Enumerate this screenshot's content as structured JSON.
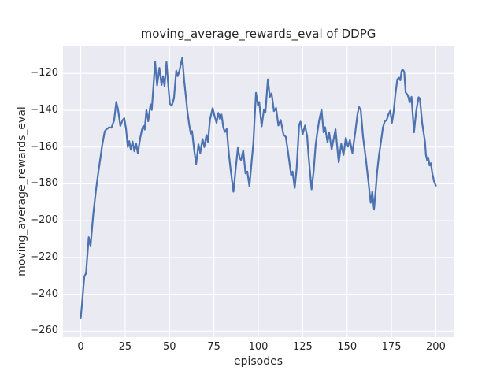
{
  "figure": {
    "title": "moving_average_rewards_eval of DDPG",
    "xlabel": "episodes",
    "ylabel": "moving_average_rewards_eval"
  },
  "colors": {
    "figure_background": "#ffffff",
    "axes_background": "#eaeaf2",
    "grid": "#ffffff",
    "line": "#4c72b0",
    "text": "#262626"
  },
  "chart_data": {
    "type": "line",
    "title": "moving_average_rewards_eval of DDPG",
    "xlabel": "episodes",
    "ylabel": "moving_average_rewards_eval",
    "grid": true,
    "legend": false,
    "xlim": [
      -10,
      210
    ],
    "ylim": [
      -263.3,
      -104.9
    ],
    "x_ticks": [
      0,
      25,
      50,
      75,
      100,
      125,
      150,
      175,
      200
    ],
    "y_ticks": [
      -120,
      -140,
      -160,
      -180,
      -200,
      -220,
      -240,
      -260
    ],
    "minus_sign": "−",
    "series": [
      {
        "name": "moving_average_rewards_eval",
        "color": "#4c72b0",
        "x": [
          0,
          1,
          2,
          3,
          4.5,
          5.5,
          7,
          8.5,
          10,
          11.3,
          12,
          13.5,
          14.5,
          16,
          17.3,
          18.8,
          20,
          21,
          22.3,
          23.5,
          24.5,
          25.5,
          26.5,
          27.3,
          28.2,
          29.2,
          30.2,
          31.2,
          32.2,
          33.5,
          34.5,
          35.2,
          36,
          37,
          38,
          39.3,
          40,
          41.9,
          43,
          44.3,
          45.5,
          46.3,
          47.2,
          48.3,
          49.3,
          50.2,
          51.3,
          52.5,
          53.8,
          54.6,
          55.4,
          57.2,
          58.3,
          59.2,
          60,
          61,
          62,
          62.7,
          63.8,
          65,
          66.3,
          67.3,
          68.6,
          69.6,
          70.8,
          71.6,
          72.8,
          74.3,
          75.4,
          76.5,
          77.5,
          78.4,
          79.3,
          80.3,
          81.2,
          82.2,
          83.5,
          84.7,
          86,
          87.3,
          88.5,
          89.5,
          90.3,
          91.5,
          92.8,
          93.8,
          95,
          96.2,
          97.2,
          98.7,
          99.8,
          100.5,
          101.9,
          103.2,
          104,
          105.4,
          106.5,
          107.5,
          108.8,
          110,
          111.3,
          112.6,
          114.2,
          115.5,
          117,
          118.5,
          119.3,
          120.5,
          121.6,
          123,
          123.8,
          125,
          126.3,
          127.5,
          128.3,
          130,
          131.2,
          132.3,
          133.3,
          134.2,
          135.6,
          136.8,
          137.6,
          139,
          139.9,
          141.3,
          143.5,
          145.3,
          146.7,
          148,
          149.3,
          150.5,
          151.6,
          153,
          154.7,
          156,
          156.8,
          157.7,
          159,
          160.5,
          161.7,
          163.3,
          164.2,
          165.2,
          166.2,
          167,
          168,
          169,
          170.2,
          171.2,
          172.3,
          173.3,
          174.3,
          175.3,
          176.3,
          177.2,
          178.3,
          179.2,
          180,
          180.7,
          181.3,
          182.2,
          183,
          184.2,
          185.3,
          186.3,
          187.7,
          189,
          190.3,
          191,
          192.3,
          193.2,
          193.9,
          194.4,
          195.1,
          195.7,
          196.5,
          197.2,
          198,
          199,
          200
        ],
        "y": [
          -253,
          -242,
          -230.5,
          -228.5,
          -209,
          -214,
          -197,
          -184,
          -173,
          -164.5,
          -159.5,
          -151.5,
          -150.3,
          -149.3,
          -149.5,
          -145.5,
          -135.5,
          -139.5,
          -148.5,
          -145.5,
          -144.3,
          -150,
          -160,
          -156.8,
          -161.5,
          -157,
          -162.3,
          -158.2,
          -163.5,
          -155,
          -150.5,
          -148.5,
          -150.5,
          -139.8,
          -146,
          -136.8,
          -139.8,
          -113.7,
          -126.5,
          -117,
          -126.3,
          -121.5,
          -126.8,
          -113.8,
          -126.5,
          -136.5,
          -137.5,
          -133.5,
          -118.5,
          -121.5,
          -119.2,
          -111.5,
          -124.3,
          -132.3,
          -140,
          -147.3,
          -152.8,
          -151.3,
          -161,
          -169.2,
          -158.5,
          -163.3,
          -155.6,
          -160,
          -153.5,
          -157.2,
          -145,
          -138.8,
          -143.3,
          -146.8,
          -141.5,
          -144.8,
          -142.3,
          -149.5,
          -151.8,
          -150.2,
          -164.5,
          -174.5,
          -184.3,
          -171.5,
          -160.5,
          -166,
          -167,
          -161.8,
          -174.3,
          -173.3,
          -181.3,
          -168.5,
          -158,
          -130.5,
          -137.2,
          -135.5,
          -148.8,
          -139.5,
          -141.3,
          -123.2,
          -132.7,
          -130.8,
          -140.5,
          -138.7,
          -148.3,
          -145.3,
          -153.2,
          -154.5,
          -164.5,
          -175.3,
          -173.3,
          -182.3,
          -171.7,
          -148,
          -146.2,
          -153,
          -148.3,
          -153.8,
          -164.5,
          -183,
          -173,
          -158.8,
          -151.7,
          -146,
          -139.5,
          -152,
          -149.2,
          -157.5,
          -152,
          -161.3,
          -150.3,
          -168.3,
          -158.3,
          -164.3,
          -155,
          -159.8,
          -156.2,
          -163.3,
          -151.3,
          -141.3,
          -138.3,
          -139.8,
          -154.5,
          -165.8,
          -176,
          -190.3,
          -184.3,
          -194,
          -182.5,
          -172.8,
          -164.3,
          -157.7,
          -149.3,
          -146.2,
          -145.3,
          -142.3,
          -140.3,
          -146.8,
          -140.3,
          -131.5,
          -123.2,
          -122.3,
          -123.7,
          -118.7,
          -117.8,
          -119.2,
          -130.3,
          -131.8,
          -135.8,
          -132.7,
          -152,
          -140,
          -132.9,
          -133.7,
          -147,
          -152.8,
          -157.2,
          -164.3,
          -167.2,
          -165.7,
          -170,
          -168.8,
          -174.3,
          -178.7,
          -181
        ]
      }
    ]
  }
}
